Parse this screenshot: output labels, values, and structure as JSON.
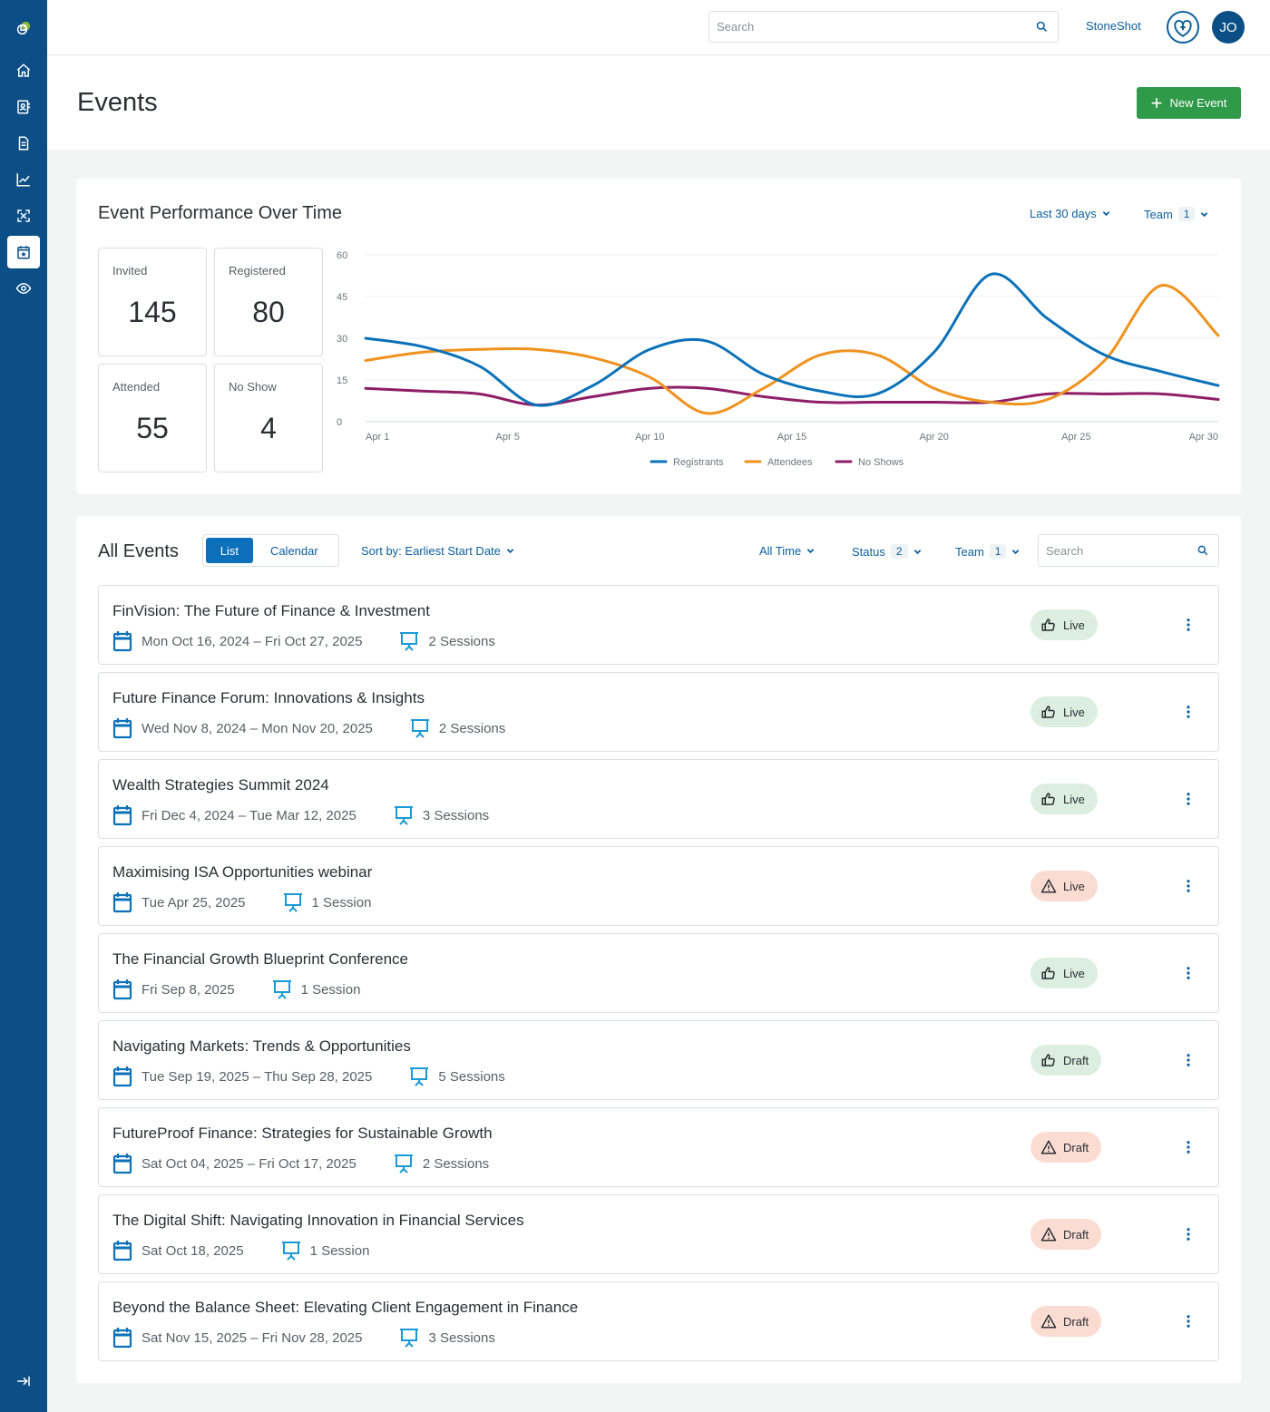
{
  "topbar": {
    "search_placeholder": "Search",
    "brand_link": "StoneShot",
    "avatar_initials": "JO"
  },
  "sidebar": {
    "items": [
      {
        "icon": "home-icon"
      },
      {
        "icon": "contacts-icon"
      },
      {
        "icon": "document-icon"
      },
      {
        "icon": "analytics-icon"
      },
      {
        "icon": "integrations-icon"
      },
      {
        "icon": "events-calendar-icon",
        "active": true
      },
      {
        "icon": "eye-icon"
      }
    ],
    "collapse_icon": "collapse-sidebar-icon"
  },
  "page": {
    "title": "Events",
    "new_event_label": "New Event"
  },
  "performance": {
    "title": "Event Performance Over Time",
    "range_label": "Last 30 days",
    "team_label": "Team",
    "team_count": "1",
    "stats": [
      {
        "label": "Invited",
        "value": "145"
      },
      {
        "label": "Registered",
        "value": "80"
      },
      {
        "label": "Attended",
        "value": "55"
      },
      {
        "label": "No Show",
        "value": "4"
      }
    ]
  },
  "chart_data": {
    "type": "line",
    "x": [
      1,
      3,
      5,
      7,
      9,
      11,
      13,
      15,
      17,
      19,
      21,
      23,
      25,
      27,
      29,
      31
    ],
    "x_ticks": [
      {
        "day": 1,
        "label": "Apr 1"
      },
      {
        "day": 6,
        "label": "Apr 5"
      },
      {
        "day": 11,
        "label": "Apr 10"
      },
      {
        "day": 16,
        "label": "Apr 15"
      },
      {
        "day": 21,
        "label": "Apr 20"
      },
      {
        "day": 26,
        "label": "Apr 25"
      },
      {
        "day": 31,
        "label": "Apr 30"
      }
    ],
    "y_ticks": [
      "0",
      "15",
      "30",
      "45",
      "60"
    ],
    "ylim": [
      0,
      60
    ],
    "series": [
      {
        "name": "Registrants",
        "color": "#0b72b9",
        "values": [
          30,
          27,
          20,
          6,
          13,
          26,
          29,
          17,
          11,
          10,
          25,
          53,
          37,
          24,
          18,
          13
        ]
      },
      {
        "name": "Attendees",
        "color": "#f0921e",
        "values": [
          22,
          25,
          26,
          26,
          23,
          16,
          3,
          12,
          24,
          24,
          12,
          7,
          8,
          22,
          49,
          31
        ]
      },
      {
        "name": "No Shows",
        "color": "#8e1e66",
        "values": [
          12,
          11,
          10,
          6,
          9,
          12,
          12,
          9,
          7,
          7,
          7,
          7,
          10,
          10,
          10,
          8
        ]
      }
    ],
    "legend_position": "bottom-center",
    "grid": true
  },
  "events": {
    "title": "All Events",
    "view_list": "List",
    "view_calendar": "Calendar",
    "sort_label": "Sort by: Earliest Start Date",
    "time_filter": "All Time",
    "status_label": "Status",
    "status_count": "2",
    "team_label": "Team",
    "team_count": "1",
    "search_placeholder": "Search",
    "items": [
      {
        "title": "FinVision: The Future of Finance & Investment",
        "dates": "Mon Oct 16, 2024 – Fri Oct 27, 2025",
        "sessions": "2 Sessions",
        "status": "Live",
        "status_icon": "thumbs-up-icon",
        "tone": "ok"
      },
      {
        "title": "Future Finance Forum: Innovations & Insights",
        "dates": "Wed Nov 8, 2024 – Mon Nov 20, 2025",
        "sessions": "2 Sessions",
        "status": "Live",
        "status_icon": "thumbs-up-icon",
        "tone": "ok"
      },
      {
        "title": "Wealth Strategies Summit 2024",
        "dates": "Fri Dec 4, 2024 – Tue Mar 12, 2025",
        "sessions": "3 Sessions",
        "status": "Live",
        "status_icon": "thumbs-up-icon",
        "tone": "ok"
      },
      {
        "title": "Maximising ISA Opportunities webinar",
        "dates": "Tue Apr 25, 2025",
        "sessions": "1 Session",
        "status": "Live",
        "status_icon": "warning-icon",
        "tone": "warn"
      },
      {
        "title": "The Financial Growth Blueprint Conference",
        "dates": "Fri Sep 8, 2025",
        "sessions": "1 Session",
        "status": "Live",
        "status_icon": "thumbs-up-icon",
        "tone": "ok"
      },
      {
        "title": "Navigating Markets: Trends & Opportunities",
        "dates": "Tue Sep 19, 2025 – Thu Sep 28, 2025",
        "sessions": "5 Sessions",
        "status": "Draft",
        "status_icon": "thumbs-up-icon",
        "tone": "ok"
      },
      {
        "title": "FutureProof Finance: Strategies for Sustainable Growth",
        "dates": "Sat Oct 04, 2025 – Fri Oct 17, 2025",
        "sessions": "2 Sessions",
        "status": "Draft",
        "status_icon": "warning-icon",
        "tone": "warn"
      },
      {
        "title": "The Digital Shift: Navigating Innovation in Financial Services",
        "dates": "Sat Oct 18, 2025",
        "sessions": "1 Session",
        "status": "Draft",
        "status_icon": "warning-icon",
        "tone": "warn"
      },
      {
        "title": "Beyond the Balance Sheet: Elevating Client Engagement in Finance",
        "dates": "Sat Nov 15, 2025 – Fri Nov 28, 2025",
        "sessions": "3 Sessions",
        "status": "Draft",
        "status_icon": "warning-icon",
        "tone": "warn"
      }
    ]
  },
  "colors": {
    "sidebar": "#0b4f86",
    "primary": "#0b6fba",
    "link": "#0b5f9c",
    "success": "#2e9a4a",
    "badge_ok": "#dbeee0",
    "badge_warn": "#fbdcd3"
  }
}
